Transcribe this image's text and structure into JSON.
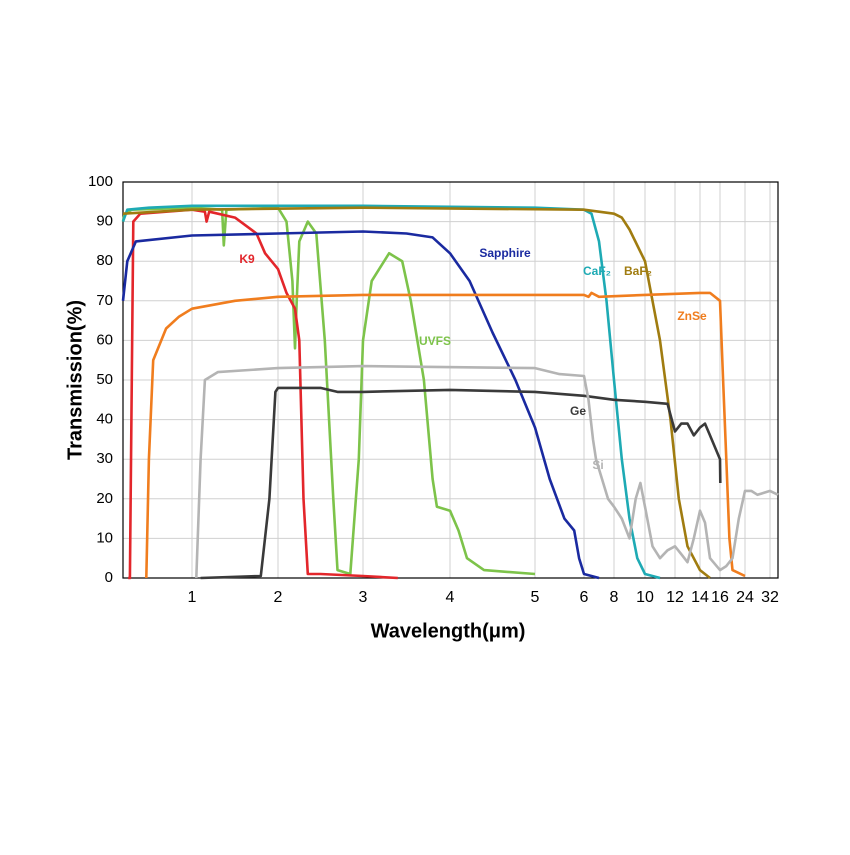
{
  "chart_data": {
    "type": "line",
    "x_label": "Wavelength(μm)",
    "y_label": "Transmission(%)",
    "xlim": [
      0.2,
      35
    ],
    "ylim": [
      0,
      100
    ],
    "xticks": [
      1,
      2,
      3,
      4,
      5,
      6,
      8,
      10,
      12,
      14,
      16,
      24,
      32
    ],
    "yticks": [
      0,
      10,
      20,
      30,
      40,
      50,
      60,
      70,
      80,
      90,
      100
    ],
    "grid": true,
    "series": [
      {
        "name": "UVFS",
        "color": "#7dc34a",
        "x": [
          0.2,
          0.22,
          0.3,
          1.0,
          1.35,
          1.37,
          1.4,
          2.0,
          2.1,
          2.17,
          2.2,
          2.22,
          2.25,
          2.35,
          2.45,
          2.55,
          2.65,
          2.7,
          2.85,
          2.95,
          3.0,
          3.1,
          3.3,
          3.45,
          3.55,
          3.7,
          3.8,
          3.85,
          4.0,
          4.1,
          4.2,
          4.4,
          5.0
        ],
        "values": [
          90,
          92,
          93,
          93.5,
          93,
          84,
          93,
          93.5,
          90,
          75,
          58,
          70,
          85,
          90,
          87,
          60,
          20,
          2,
          1,
          30,
          60,
          75,
          82,
          80,
          70,
          50,
          25,
          18,
          17,
          12,
          5,
          2,
          1
        ]
      },
      {
        "name": "K9",
        "color": "#e3262b",
        "x": [
          0.26,
          0.28,
          0.32,
          0.4,
          1.0,
          1.15,
          1.17,
          1.2,
          1.5,
          1.75,
          1.85,
          2.0,
          2.1,
          2.2,
          2.25,
          2.3,
          2.35,
          2.5,
          3.0,
          3.4
        ],
        "values": [
          0,
          0,
          90,
          92,
          93,
          92.5,
          90,
          92.5,
          91,
          87,
          82,
          78,
          72,
          68,
          60,
          20,
          1,
          1,
          0.5,
          0
        ]
      },
      {
        "name": "Sapphire",
        "color": "#1a2aa0",
        "x": [
          0.2,
          0.25,
          0.35,
          1,
          2,
          3,
          3.5,
          3.8,
          4.0,
          4.23,
          4.5,
          4.77,
          5.0,
          5.3,
          5.6,
          5.8,
          5.9,
          6.0,
          7
        ],
        "values": [
          70,
          80,
          85,
          86.5,
          87,
          87.5,
          87,
          86,
          82,
          75,
          62,
          50,
          38,
          25,
          15,
          12,
          5,
          1,
          0
        ]
      },
      {
        "name": "CaF₂",
        "color": "#1eaab4",
        "x": [
          0.2,
          0.25,
          0.5,
          1,
          3,
          5,
          6,
          6.5,
          7,
          7.5,
          8,
          8.5,
          9,
          9.5,
          10,
          11
        ],
        "values": [
          90,
          93,
          93.5,
          94,
          94,
          93.5,
          93,
          92,
          85,
          70,
          50,
          30,
          15,
          5,
          1,
          0
        ]
      },
      {
        "name": "BaF₂",
        "color": "#a07c10",
        "x": [
          0.2,
          1,
          3,
          6,
          8,
          8.5,
          9,
          10,
          11,
          11.7,
          12.3,
          13,
          14,
          15
        ],
        "values": [
          92,
          93,
          93.5,
          93,
          92,
          91,
          88,
          80,
          60,
          40,
          20,
          8,
          2,
          0
        ]
      },
      {
        "name": "ZnSe",
        "color": "#f07d1e",
        "x": [
          0.47,
          0.5,
          0.55,
          0.7,
          0.85,
          1,
          1.5,
          2,
          3,
          4,
          6,
          6.3,
          6.5,
          7,
          10,
          14,
          15,
          16,
          17,
          18,
          19,
          20,
          24
        ],
        "values": [
          0,
          30,
          55,
          63,
          66,
          68,
          70,
          71,
          71.5,
          71.5,
          71.5,
          71,
          72,
          71,
          71.5,
          72,
          72,
          70,
          50,
          30,
          10,
          2,
          0.5
        ]
      },
      {
        "name": "Ge",
        "color": "#3a3a3a",
        "x": [
          1.1,
          1.8,
          1.9,
          1.97,
          2,
          2.5,
          2.7,
          3,
          4,
          5,
          6,
          8,
          10,
          11.5,
          12,
          12.5,
          13,
          13.5,
          14,
          14.5,
          15,
          16,
          16.1
        ],
        "values": [
          0,
          0.5,
          20,
          47,
          48,
          48,
          47,
          47,
          47.5,
          47,
          46,
          45,
          44.5,
          44,
          37,
          39,
          39,
          36,
          38,
          39,
          36,
          30,
          24
        ]
      },
      {
        "name": "Si",
        "color": "#b4b4b4",
        "x": [
          1.05,
          1.1,
          1.15,
          1.3,
          2,
          3,
          5,
          5.5,
          6,
          6.3,
          6.6,
          6.8,
          7.2,
          7.6,
          8,
          8.5,
          9,
          9.4,
          9.7,
          10,
          10.5,
          11,
          11.5,
          12,
          12.5,
          13,
          13.5,
          14,
          14.5,
          15,
          16,
          18,
          20,
          22,
          24,
          26,
          28,
          32,
          35
        ],
        "values": [
          0,
          30,
          50,
          52,
          53,
          53.5,
          53,
          51.5,
          51,
          45,
          35,
          30,
          25,
          20,
          18,
          15,
          10,
          20,
          24,
          18,
          8,
          5,
          7,
          8,
          6,
          4,
          10,
          17,
          14,
          5,
          2,
          3,
          5,
          15,
          22,
          22,
          21,
          22,
          21
        ]
      }
    ]
  }
}
